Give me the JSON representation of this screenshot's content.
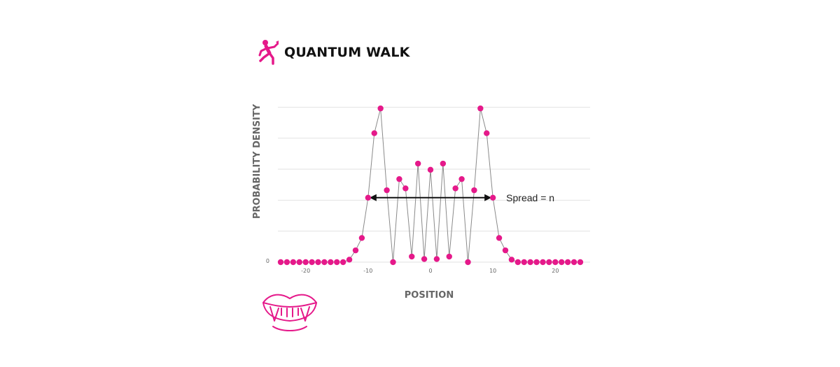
{
  "header": {
    "title": "QUANTUM WALK",
    "icon": "walking-person-icon"
  },
  "decor": {
    "icon": "vampire-fangs-icon"
  },
  "colors": {
    "accent": "#e5198a",
    "line": "#8a8a8a",
    "grid": "#e2e2e2",
    "text": "#666666"
  },
  "chart_data": {
    "type": "scatter",
    "xlabel": "POSITION",
    "ylabel": "PROBABILITY DENSITY",
    "xlim": [
      -24,
      24
    ],
    "ylim": [
      0,
      0.15
    ],
    "xticks": [
      -20,
      -10,
      0,
      10,
      20
    ],
    "xtick_labels": [
      "-20",
      "-10",
      "0",
      "10",
      "20"
    ],
    "yticks": [
      0,
      0.025,
      0.05,
      0.075,
      0.1,
      0.125
    ],
    "ytick_labels": [
      "0",
      "",
      "",
      "",
      "",
      ""
    ],
    "grid": true,
    "connected": true,
    "series": [
      {
        "points": [
          [
            -24,
            0
          ],
          [
            -23,
            0
          ],
          [
            -22,
            0
          ],
          [
            -21,
            0
          ],
          [
            -20,
            0
          ],
          [
            -19,
            0
          ],
          [
            -18,
            0
          ],
          [
            -17,
            0
          ],
          [
            -16,
            0
          ],
          [
            -15,
            0
          ],
          [
            -14,
            0
          ],
          [
            -13,
            0.002
          ],
          [
            -12,
            0.0095
          ],
          [
            -11,
            0.0195
          ],
          [
            -10,
            0.052
          ],
          [
            -9,
            0.104
          ],
          [
            -8,
            0.124
          ],
          [
            -7,
            0.058
          ],
          [
            -6,
            0
          ],
          [
            -5,
            0.067
          ],
          [
            -4,
            0.0595
          ],
          [
            -3,
            0.0045
          ],
          [
            -2,
            0.0795
          ],
          [
            -1,
            0.0025
          ],
          [
            0,
            0.0745
          ],
          [
            1,
            0.0025
          ],
          [
            2,
            0.0795
          ],
          [
            3,
            0.0045
          ],
          [
            4,
            0.0595
          ],
          [
            5,
            0.067
          ],
          [
            6,
            0
          ],
          [
            7,
            0.058
          ],
          [
            8,
            0.124
          ],
          [
            9,
            0.104
          ],
          [
            10,
            0.052
          ],
          [
            11,
            0.0195
          ],
          [
            12,
            0.0095
          ],
          [
            13,
            0.002
          ],
          [
            14,
            0
          ],
          [
            15,
            0
          ],
          [
            16,
            0
          ],
          [
            17,
            0
          ],
          [
            18,
            0
          ],
          [
            19,
            0
          ],
          [
            20,
            0
          ],
          [
            21,
            0
          ],
          [
            22,
            0
          ],
          [
            23,
            0
          ],
          [
            24,
            0
          ]
        ]
      }
    ],
    "annotations": [
      {
        "type": "double-arrow",
        "x_from": -10,
        "x_to": 10,
        "y": 0.052,
        "label": "Spread = n"
      }
    ]
  }
}
